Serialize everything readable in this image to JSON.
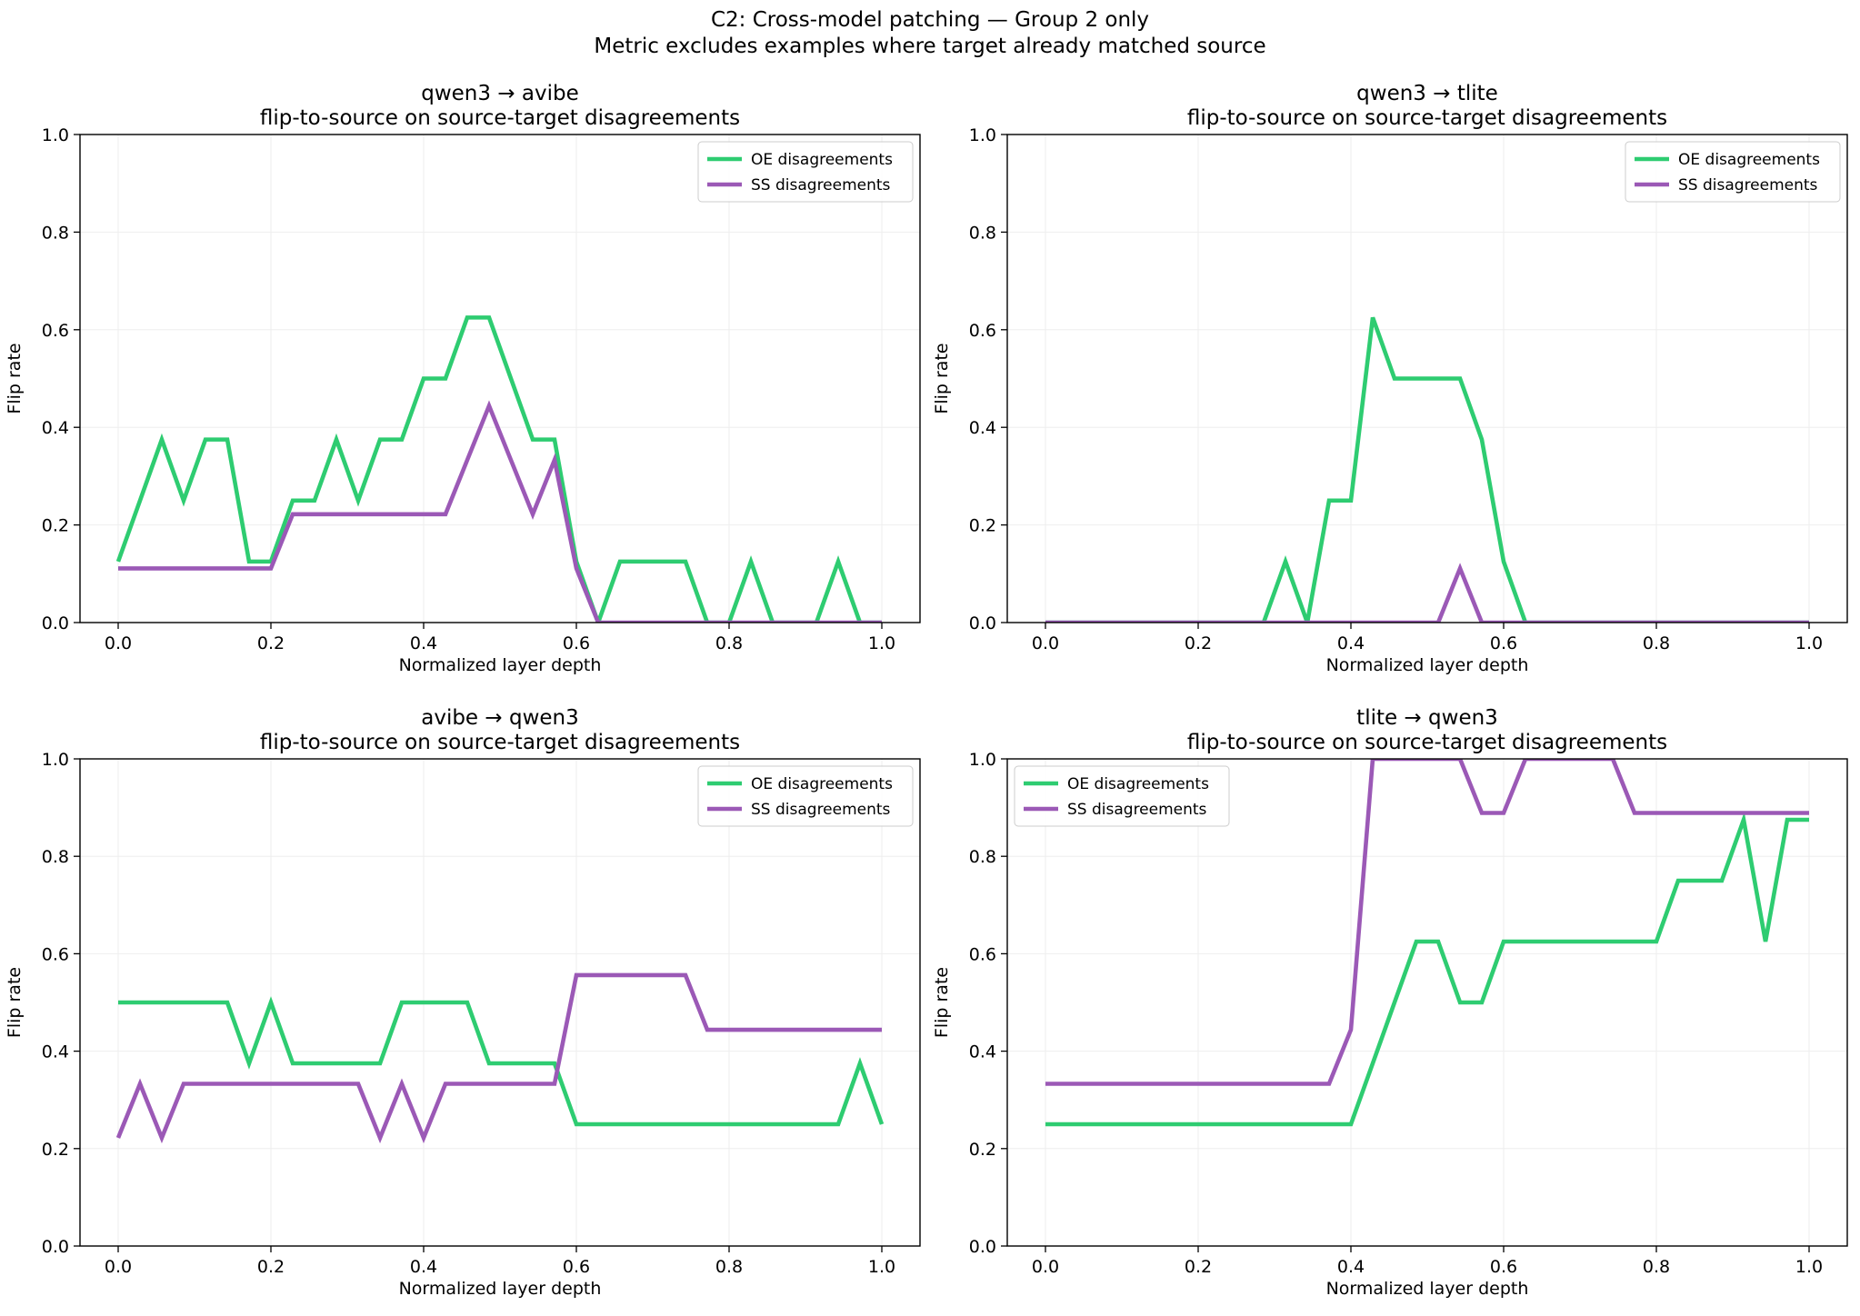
{
  "figure": {
    "suptitle_line1": "C2: Cross-model patching — Group 2 only",
    "suptitle_line2": "Metric excludes examples where target already matched source"
  },
  "colors": {
    "OE": "#2ecc71",
    "SS": "#9b59b6",
    "grid": "#eeeeee",
    "axis": "#000000"
  },
  "chart_data": [
    {
      "type": "line",
      "title": "qwen3 → avibe",
      "subtitle": "flip-to-source on source-target disagreements",
      "xlabel": "Normalized layer depth",
      "ylabel": "Flip rate",
      "xlim": [
        -0.05,
        1.05
      ],
      "ylim": [
        0.0,
        1.0
      ],
      "xticks": [
        "0.0",
        "0.2",
        "0.4",
        "0.6",
        "0.8",
        "1.0"
      ],
      "yticks": [
        "0.0",
        "0.2",
        "0.4",
        "0.6",
        "0.8",
        "1.0"
      ],
      "grid": true,
      "legend_position": "upper right",
      "x": [
        0.0,
        0.0286,
        0.0571,
        0.0857,
        0.1143,
        0.1429,
        0.1714,
        0.2,
        0.2286,
        0.2571,
        0.2857,
        0.3143,
        0.3429,
        0.3714,
        0.4,
        0.4286,
        0.4571,
        0.4857,
        0.5143,
        0.5429,
        0.5714,
        0.6,
        0.6286,
        0.6571,
        0.6857,
        0.7143,
        0.7429,
        0.7714,
        0.8,
        0.8286,
        0.8571,
        0.8857,
        0.9143,
        0.9429,
        0.9714,
        1.0
      ],
      "series": [
        {
          "name": "OE disagreements",
          "color": "#2ecc71",
          "values": [
            0.125,
            0.25,
            0.375,
            0.25,
            0.375,
            0.375,
            0.125,
            0.125,
            0.25,
            0.25,
            0.375,
            0.25,
            0.375,
            0.375,
            0.5,
            0.5,
            0.625,
            0.625,
            0.5,
            0.375,
            0.375,
            0.125,
            0.0,
            0.125,
            0.125,
            0.125,
            0.125,
            0.0,
            0.0,
            0.125,
            0.0,
            0.0,
            0.0,
            0.125,
            0.0,
            0.0
          ]
        },
        {
          "name": "SS disagreements",
          "color": "#9b59b6",
          "values": [
            0.111,
            0.111,
            0.111,
            0.111,
            0.111,
            0.111,
            0.111,
            0.111,
            0.222,
            0.222,
            0.222,
            0.222,
            0.222,
            0.222,
            0.222,
            0.222,
            0.333,
            0.444,
            0.333,
            0.222,
            0.333,
            0.111,
            0.0,
            0.0,
            0.0,
            0.0,
            0.0,
            0.0,
            0.0,
            0.0,
            0.0,
            0.0,
            0.0,
            0.0,
            0.0,
            0.0
          ]
        }
      ]
    },
    {
      "type": "line",
      "title": "qwen3 → tlite",
      "subtitle": "flip-to-source on source-target disagreements",
      "xlabel": "Normalized layer depth",
      "ylabel": "Flip rate",
      "xlim": [
        -0.05,
        1.05
      ],
      "ylim": [
        0.0,
        1.0
      ],
      "xticks": [
        "0.0",
        "0.2",
        "0.4",
        "0.6",
        "0.8",
        "1.0"
      ],
      "yticks": [
        "0.0",
        "0.2",
        "0.4",
        "0.6",
        "0.8",
        "1.0"
      ],
      "grid": true,
      "legend_position": "upper right",
      "x": [
        0.0,
        0.0286,
        0.0571,
        0.0857,
        0.1143,
        0.1429,
        0.1714,
        0.2,
        0.2286,
        0.2571,
        0.2857,
        0.3143,
        0.3429,
        0.3714,
        0.4,
        0.4286,
        0.4571,
        0.4857,
        0.5143,
        0.5429,
        0.5714,
        0.6,
        0.6286,
        0.6571,
        0.6857,
        0.7143,
        0.7429,
        0.7714,
        0.8,
        0.8286,
        0.8571,
        0.8857,
        0.9143,
        0.9429,
        0.9714,
        1.0
      ],
      "series": [
        {
          "name": "OE disagreements",
          "color": "#2ecc71",
          "values": [
            0.0,
            0.0,
            0.0,
            0.0,
            0.0,
            0.0,
            0.0,
            0.0,
            0.0,
            0.0,
            0.0,
            0.125,
            0.0,
            0.25,
            0.25,
            0.625,
            0.5,
            0.5,
            0.5,
            0.5,
            0.375,
            0.125,
            0.0,
            0.0,
            0.0,
            0.0,
            0.0,
            0.0,
            0.0,
            0.0,
            0.0,
            0.0,
            0.0,
            0.0,
            0.0,
            0.0
          ]
        },
        {
          "name": "SS disagreements",
          "color": "#9b59b6",
          "values": [
            0.0,
            0.0,
            0.0,
            0.0,
            0.0,
            0.0,
            0.0,
            0.0,
            0.0,
            0.0,
            0.0,
            0.0,
            0.0,
            0.0,
            0.0,
            0.0,
            0.0,
            0.0,
            0.0,
            0.111,
            0.0,
            0.0,
            0.0,
            0.0,
            0.0,
            0.0,
            0.0,
            0.0,
            0.0,
            0.0,
            0.0,
            0.0,
            0.0,
            0.0,
            0.0,
            0.0
          ]
        }
      ]
    },
    {
      "type": "line",
      "title": "avibe → qwen3",
      "subtitle": "flip-to-source on source-target disagreements",
      "xlabel": "Normalized layer depth",
      "ylabel": "Flip rate",
      "xlim": [
        -0.05,
        1.05
      ],
      "ylim": [
        0.0,
        1.0
      ],
      "xticks": [
        "0.0",
        "0.2",
        "0.4",
        "0.6",
        "0.8",
        "1.0"
      ],
      "yticks": [
        "0.0",
        "0.2",
        "0.4",
        "0.6",
        "0.8",
        "1.0"
      ],
      "grid": true,
      "legend_position": "upper right",
      "x": [
        0.0,
        0.0286,
        0.0571,
        0.0857,
        0.1143,
        0.1429,
        0.1714,
        0.2,
        0.2286,
        0.2571,
        0.2857,
        0.3143,
        0.3429,
        0.3714,
        0.4,
        0.4286,
        0.4571,
        0.4857,
        0.5143,
        0.5429,
        0.5714,
        0.6,
        0.6286,
        0.6571,
        0.6857,
        0.7143,
        0.7429,
        0.7714,
        0.8,
        0.8286,
        0.8571,
        0.8857,
        0.9143,
        0.9429,
        0.9714,
        1.0
      ],
      "series": [
        {
          "name": "OE disagreements",
          "color": "#2ecc71",
          "values": [
            0.5,
            0.5,
            0.5,
            0.5,
            0.5,
            0.5,
            0.375,
            0.5,
            0.375,
            0.375,
            0.375,
            0.375,
            0.375,
            0.5,
            0.5,
            0.5,
            0.5,
            0.375,
            0.375,
            0.375,
            0.375,
            0.25,
            0.25,
            0.25,
            0.25,
            0.25,
            0.25,
            0.25,
            0.25,
            0.25,
            0.25,
            0.25,
            0.25,
            0.25,
            0.375,
            0.25
          ]
        },
        {
          "name": "SS disagreements",
          "color": "#9b59b6",
          "values": [
            0.222,
            0.333,
            0.222,
            0.333,
            0.333,
            0.333,
            0.333,
            0.333,
            0.333,
            0.333,
            0.333,
            0.333,
            0.222,
            0.333,
            0.222,
            0.333,
            0.333,
            0.333,
            0.333,
            0.333,
            0.333,
            0.556,
            0.556,
            0.556,
            0.556,
            0.556,
            0.556,
            0.444,
            0.444,
            0.444,
            0.444,
            0.444,
            0.444,
            0.444,
            0.444,
            0.444
          ]
        }
      ]
    },
    {
      "type": "line",
      "title": "tlite → qwen3",
      "subtitle": "flip-to-source on source-target disagreements",
      "xlabel": "Normalized layer depth",
      "ylabel": "Flip rate",
      "xlim": [
        -0.05,
        1.05
      ],
      "ylim": [
        0.0,
        1.0
      ],
      "xticks": [
        "0.0",
        "0.2",
        "0.4",
        "0.6",
        "0.8",
        "1.0"
      ],
      "yticks": [
        "0.0",
        "0.2",
        "0.4",
        "0.6",
        "0.8",
        "1.0"
      ],
      "grid": true,
      "legend_position": "upper left",
      "x": [
        0.0,
        0.0286,
        0.0571,
        0.0857,
        0.1143,
        0.1429,
        0.1714,
        0.2,
        0.2286,
        0.2571,
        0.2857,
        0.3143,
        0.3429,
        0.3714,
        0.4,
        0.4286,
        0.4571,
        0.4857,
        0.5143,
        0.5429,
        0.5714,
        0.6,
        0.6286,
        0.6571,
        0.6857,
        0.7143,
        0.7429,
        0.7714,
        0.8,
        0.8286,
        0.8571,
        0.8857,
        0.9143,
        0.9429,
        0.9714,
        1.0
      ],
      "series": [
        {
          "name": "OE disagreements",
          "color": "#2ecc71",
          "values": [
            0.25,
            0.25,
            0.25,
            0.25,
            0.25,
            0.25,
            0.25,
            0.25,
            0.25,
            0.25,
            0.25,
            0.25,
            0.25,
            0.25,
            0.25,
            0.375,
            0.5,
            0.625,
            0.625,
            0.5,
            0.5,
            0.625,
            0.625,
            0.625,
            0.625,
            0.625,
            0.625,
            0.625,
            0.625,
            0.75,
            0.75,
            0.75,
            0.875,
            0.625,
            0.875,
            0.875
          ]
        },
        {
          "name": "SS disagreements",
          "color": "#9b59b6",
          "values": [
            0.333,
            0.333,
            0.333,
            0.333,
            0.333,
            0.333,
            0.333,
            0.333,
            0.333,
            0.333,
            0.333,
            0.333,
            0.333,
            0.333,
            0.444,
            1.0,
            1.0,
            1.0,
            1.0,
            1.0,
            0.889,
            0.889,
            1.0,
            1.0,
            1.0,
            1.0,
            1.0,
            0.889,
            0.889,
            0.889,
            0.889,
            0.889,
            0.889,
            0.889,
            0.889,
            0.889
          ]
        }
      ]
    }
  ]
}
